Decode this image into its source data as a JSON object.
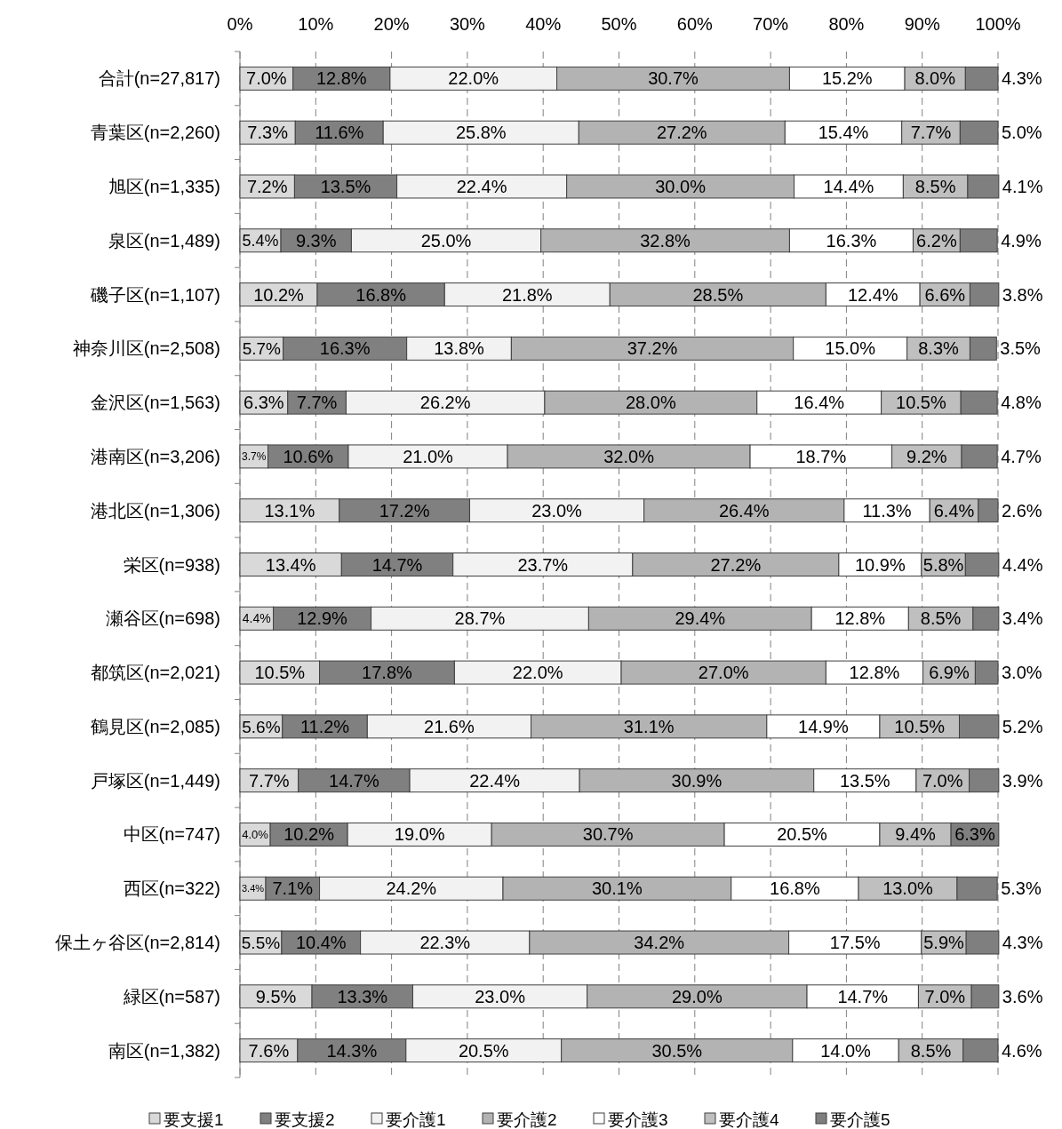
{
  "chart_data": {
    "type": "bar",
    "orientation": "horizontal",
    "stacked": true,
    "grid": "x",
    "legend": "bottom",
    "xlim": [
      0,
      100
    ],
    "xticks": [
      {
        "value": 0,
        "label": "0%"
      },
      {
        "value": 10,
        "label": "10%"
      },
      {
        "value": 20,
        "label": "20%"
      },
      {
        "value": 30,
        "label": "30%"
      },
      {
        "value": 40,
        "label": "40%"
      },
      {
        "value": 50,
        "label": "50%"
      },
      {
        "value": 60,
        "label": "60%"
      },
      {
        "value": 70,
        "label": "70%"
      },
      {
        "value": 80,
        "label": "80%"
      },
      {
        "value": 90,
        "label": "90%"
      },
      {
        "value": 100,
        "label": "100%"
      }
    ],
    "categories": [
      "合計(n=27,817)",
      "青葉区(n=2,260)",
      "旭区(n=1,335)",
      "泉区(n=1,489)",
      "磯子区(n=1,107)",
      "神奈川区(n=2,508)",
      "金沢区(n=1,563)",
      "港南区(n=3,206)",
      "港北区(n=1,306)",
      "栄区(n=938)",
      "瀬谷区(n=698)",
      "都筑区(n=2,021)",
      "鶴見区(n=2,085)",
      "戸塚区(n=1,449)",
      "中区(n=747)",
      "西区(n=322)",
      "保土ヶ谷区(n=2,814)",
      "緑区(n=587)",
      "南区(n=1,382)"
    ],
    "series": [
      {
        "name": "要支援1",
        "color": "#d9d9d9",
        "values": [
          7.0,
          7.3,
          7.2,
          5.4,
          10.2,
          5.7,
          6.3,
          3.7,
          13.1,
          13.4,
          4.4,
          10.5,
          5.6,
          7.7,
          4.0,
          3.4,
          5.5,
          9.5,
          7.6
        ],
        "value_labels": [
          "7.0%",
          "7.3%",
          "7.2%",
          "5.4%",
          "10.2%",
          "5.7%",
          "6.3%",
          "3.7%",
          "13.1%",
          "13.4%",
          "4.4%",
          "10.5%",
          "5.6%",
          "7.7%",
          "4.0%",
          "3.4%",
          "5.5%",
          "9.5%",
          "7.6%"
        ]
      },
      {
        "name": "要支援2",
        "color": "#808080",
        "values": [
          12.8,
          11.6,
          13.5,
          9.3,
          16.8,
          16.3,
          7.7,
          10.6,
          17.2,
          14.7,
          12.9,
          17.8,
          11.2,
          14.7,
          10.2,
          7.1,
          10.4,
          13.3,
          14.3
        ],
        "value_labels": [
          "12.8%",
          "11.6%",
          "13.5%",
          "9.3%",
          "16.8%",
          "16.3%",
          "7.7%",
          "10.6%",
          "17.2%",
          "14.7%",
          "12.9%",
          "17.8%",
          "11.2%",
          "14.7%",
          "10.2%",
          "7.1%",
          "10.4%",
          "13.3%",
          "14.3%"
        ]
      },
      {
        "name": "要介護1",
        "color": "#f2f2f2",
        "values": [
          22.0,
          25.8,
          22.4,
          25.0,
          21.8,
          13.8,
          26.2,
          21.0,
          23.0,
          23.7,
          28.7,
          22.0,
          21.6,
          22.4,
          19.0,
          24.2,
          22.3,
          23.0,
          20.5
        ],
        "value_labels": [
          "22.0%",
          "25.8%",
          "22.4%",
          "25.0%",
          "21.8%",
          "13.8%",
          "26.2%",
          "21.0%",
          "23.0%",
          "23.7%",
          "28.7%",
          "22.0%",
          "21.6%",
          "22.4%",
          "19.0%",
          "24.2%",
          "22.3%",
          "23.0%",
          "20.5%"
        ]
      },
      {
        "name": "要介護2",
        "color": "#b3b3b3",
        "values": [
          30.7,
          27.2,
          30.0,
          32.8,
          28.5,
          37.2,
          28.0,
          32.0,
          26.4,
          27.2,
          29.4,
          27.0,
          31.1,
          30.9,
          30.7,
          30.1,
          34.2,
          29.0,
          30.5
        ],
        "value_labels": [
          "30.7%",
          "27.2%",
          "30.0%",
          "32.8%",
          "28.5%",
          "37.2%",
          "28.0%",
          "32.0%",
          "26.4%",
          "27.2%",
          "29.4%",
          "27.0%",
          "31.1%",
          "30.9%",
          "30.7%",
          "30.1%",
          "34.2%",
          "29.0%",
          "30.5%"
        ]
      },
      {
        "name": "要介護3",
        "color": "#ffffff",
        "values": [
          15.2,
          15.4,
          14.4,
          16.3,
          12.4,
          15.0,
          16.4,
          18.7,
          11.3,
          10.9,
          12.8,
          12.8,
          14.9,
          13.5,
          20.5,
          16.8,
          17.5,
          14.7,
          14.0
        ],
        "value_labels": [
          "15.2%",
          "15.4%",
          "14.4%",
          "16.3%",
          "12.4%",
          "15.0%",
          "16.4%",
          "18.7%",
          "11.3%",
          "10.9%",
          "12.8%",
          "12.8%",
          "14.9%",
          "13.5%",
          "20.5%",
          "16.8%",
          "17.5%",
          "14.7%",
          "14.0%"
        ]
      },
      {
        "name": "要介護4",
        "color": "#bfbfbf",
        "values": [
          8.0,
          7.7,
          8.5,
          6.2,
          6.6,
          8.3,
          10.5,
          9.2,
          6.4,
          5.8,
          8.5,
          6.9,
          10.5,
          7.0,
          9.4,
          13.0,
          5.9,
          7.0,
          8.5
        ],
        "value_labels": [
          "8.0%",
          "7.7%",
          "8.5%",
          "6.2%",
          "6.6%",
          "8.3%",
          "10.5%",
          "9.2%",
          "6.4%",
          "5.8%",
          "8.5%",
          "6.9%",
          "10.5%",
          "7.0%",
          "9.4%",
          "13.0%",
          "5.9%",
          "7.0%",
          "8.5%"
        ]
      },
      {
        "name": "要介護5",
        "color": "#7f7f7f",
        "values": [
          4.3,
          5.0,
          4.1,
          4.9,
          3.8,
          3.5,
          4.8,
          4.7,
          2.6,
          4.4,
          3.4,
          3.0,
          5.2,
          3.9,
          6.3,
          5.3,
          4.3,
          3.6,
          4.6
        ],
        "value_labels": [
          "4.3%",
          "5.0%",
          "4.1%",
          "4.9%",
          "3.8%",
          "3.5%",
          "4.8%",
          "4.7%",
          "2.6%",
          "4.4%",
          "3.4%",
          "3.0%",
          "5.2%",
          "3.9%",
          "6.3%",
          "5.3%",
          "4.3%",
          "3.6%",
          "4.6%"
        ]
      }
    ]
  }
}
